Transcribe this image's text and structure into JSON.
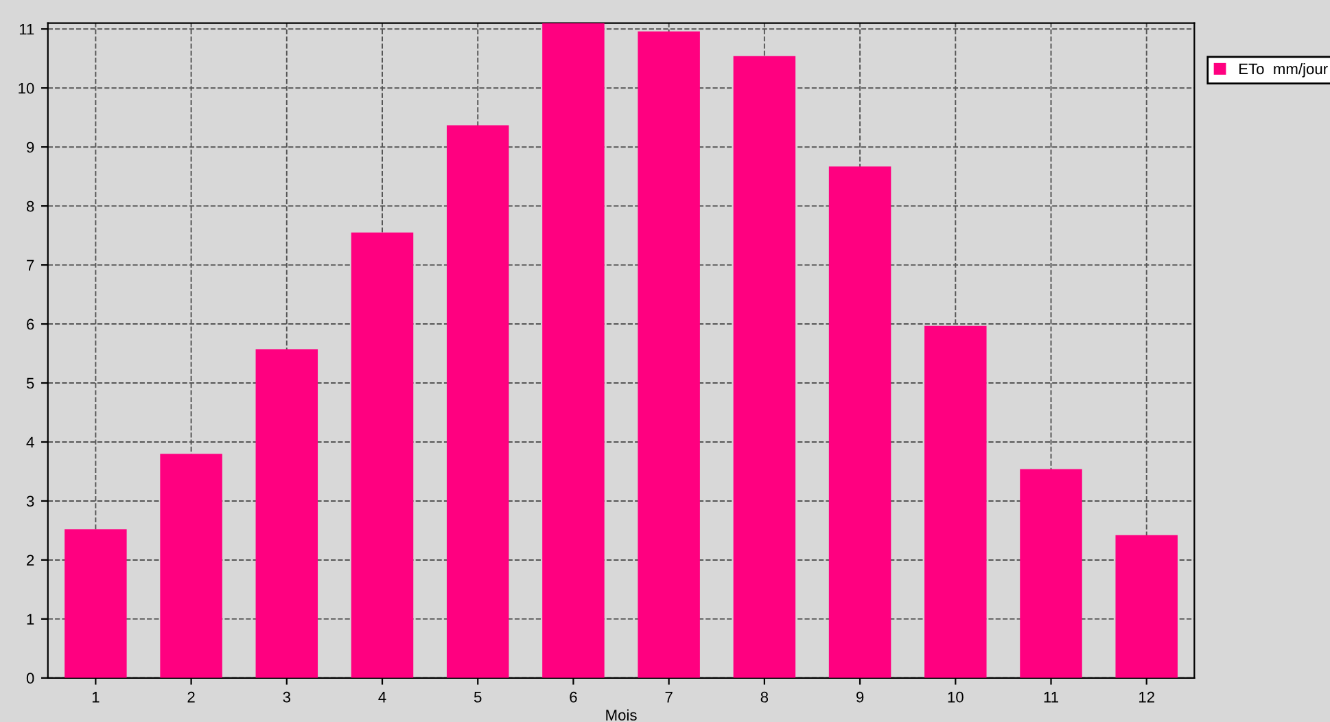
{
  "chart_data": {
    "type": "bar",
    "xlabel": "Mois",
    "categories": [
      "1",
      "2",
      "3",
      "4",
      "5",
      "6",
      "7",
      "8",
      "9",
      "10",
      "11",
      "12"
    ],
    "series": [
      {
        "name": "ETo  mm/jour",
        "color": "#ff0080",
        "values": [
          2.52,
          3.8,
          5.57,
          7.55,
          9.37,
          11.1,
          10.96,
          10.54,
          8.67,
          5.97,
          3.54,
          2.42
        ]
      }
    ],
    "ylim": [
      0,
      11.1
    ],
    "yticks": [
      0,
      1,
      2,
      3,
      4,
      5,
      6,
      7,
      8,
      9,
      10,
      11
    ],
    "grid": true,
    "legend": "top right"
  }
}
